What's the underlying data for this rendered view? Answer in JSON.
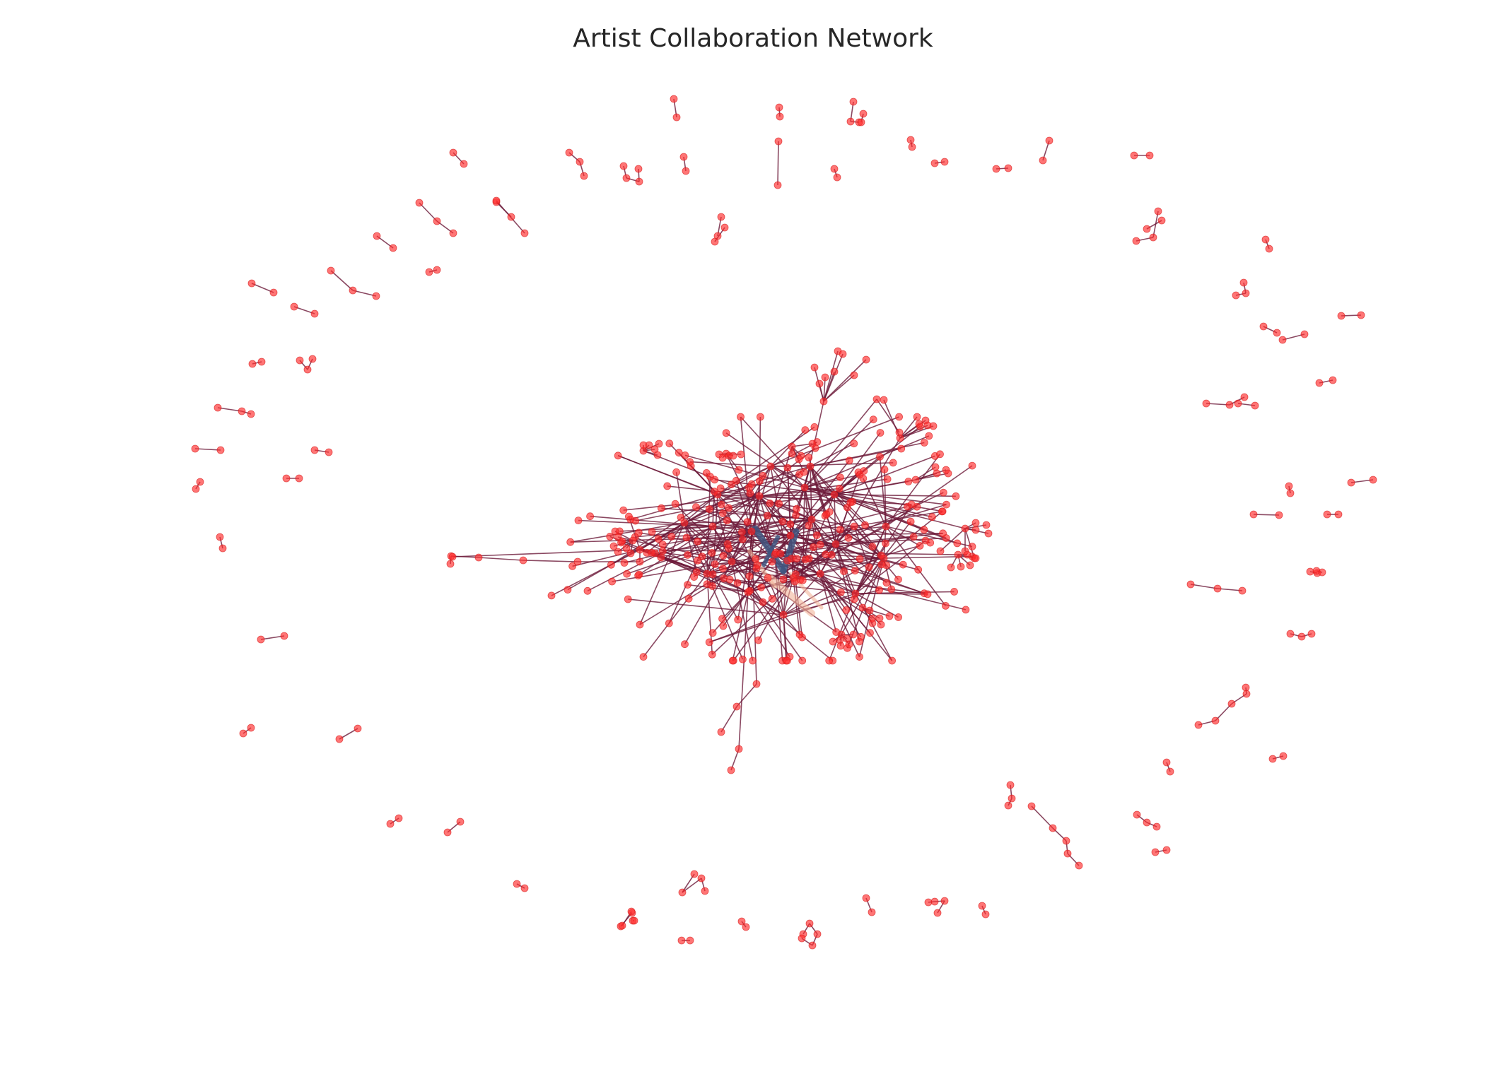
{
  "title": "Artist Collaboration Network",
  "chart_data": {
    "type": "network",
    "title": "Artist Collaboration Network",
    "node_color": "#ff2b2b",
    "edge_color": "#6d1a3a",
    "highlight_edge_colors": [
      "#3f5680",
      "#f2b49a"
    ],
    "layout": "force-directed",
    "components": "one large central cluster with many small peripheral pairs and triads arranged in an outer ring",
    "grid": false,
    "axes": false
  }
}
